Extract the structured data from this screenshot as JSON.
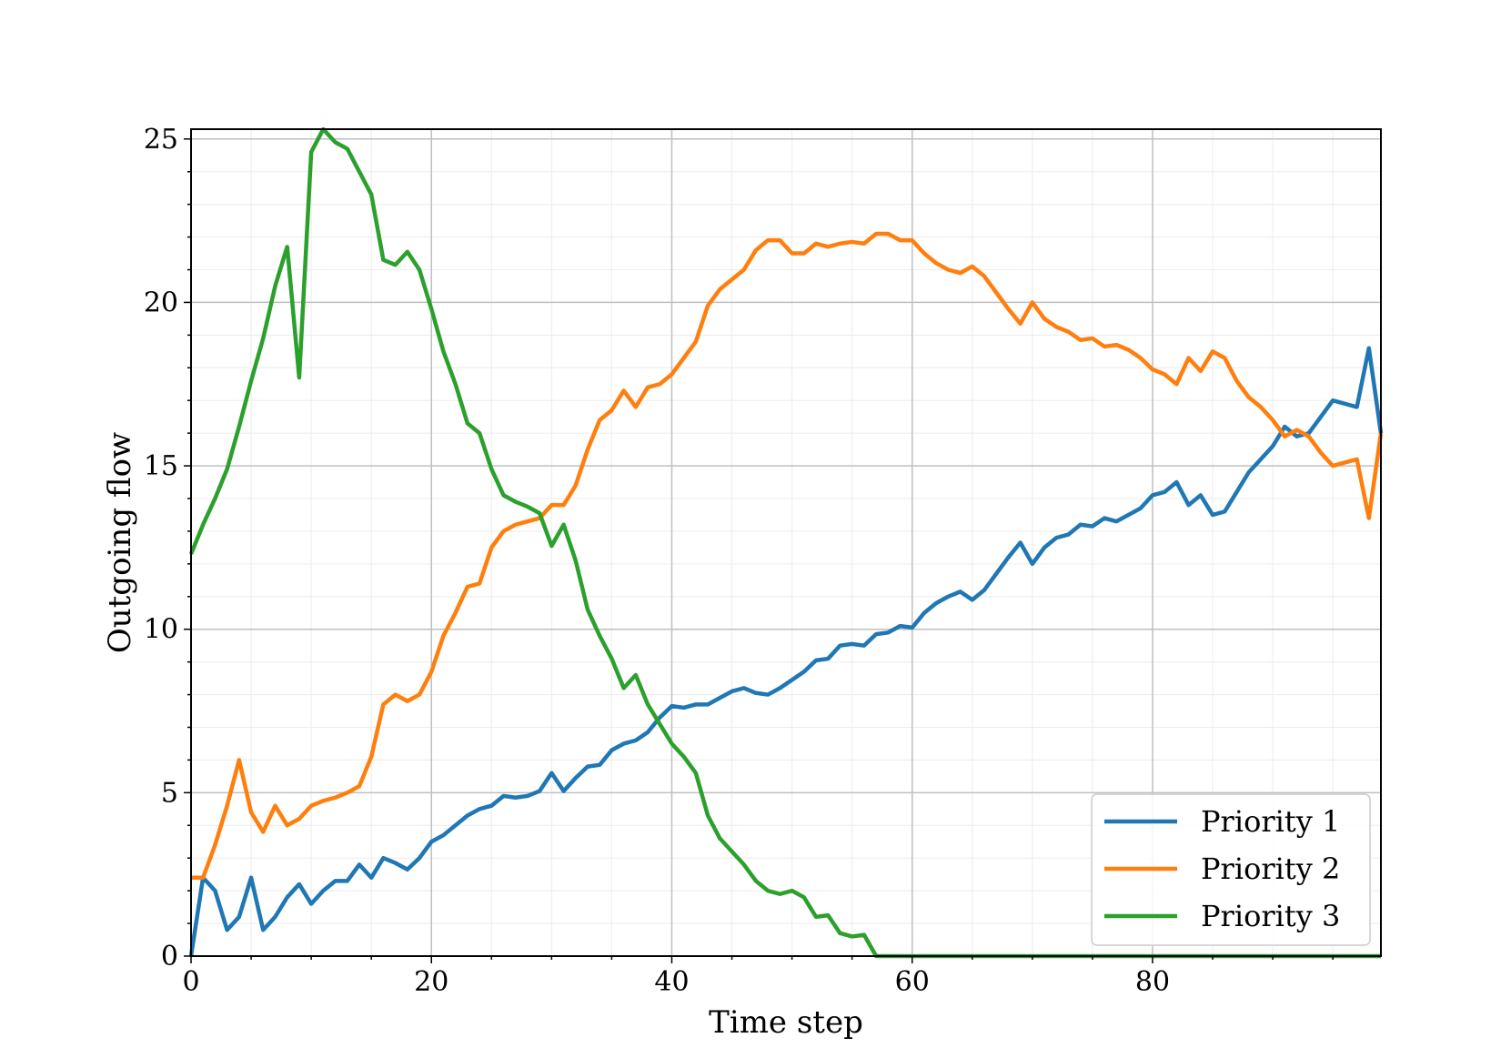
{
  "chart_data": {
    "type": "line",
    "xlabel": "Time step",
    "ylabel": "Outgoing flow",
    "xlim": [
      0,
      99
    ],
    "ylim": [
      0,
      25.3
    ],
    "x_ticks": [
      0,
      20,
      40,
      60,
      80
    ],
    "y_ticks": [
      0,
      5,
      10,
      15,
      20,
      25
    ],
    "x_ticks_labels": [
      "0",
      "20",
      "40",
      "60",
      "80"
    ],
    "y_ticks_labels": [
      "0",
      "5",
      "10",
      "15",
      "20",
      "25"
    ],
    "grid": true,
    "minor_grid": true,
    "legend_position": "bottom-right",
    "series": [
      {
        "name": "Priority 1",
        "color": "#1f77b4",
        "values": [
          0,
          2.4,
          2.0,
          0.8,
          1.2,
          2.4,
          0.8,
          1.2,
          1.8,
          2.2,
          1.6,
          2.0,
          2.3,
          2.3,
          2.8,
          2.4,
          3.0,
          2.85,
          2.65,
          3.0,
          3.5,
          3.7,
          4.0,
          4.3,
          4.5,
          4.6,
          4.9,
          4.85,
          4.9,
          5.05,
          5.6,
          5.05,
          5.45,
          5.8,
          5.85,
          6.3,
          6.5,
          6.6,
          6.85,
          7.3,
          7.65,
          7.6,
          7.7,
          7.7,
          7.9,
          8.1,
          8.2,
          8.05,
          8.0,
          8.2,
          8.45,
          8.7,
          9.05,
          9.1,
          9.5,
          9.55,
          9.5,
          9.85,
          9.9,
          10.1,
          10.05,
          10.5,
          10.8,
          11.0,
          11.15,
          10.9,
          11.2,
          11.7,
          12.2,
          12.65,
          12.0,
          12.5,
          12.8,
          12.9,
          13.2,
          13.15,
          13.4,
          13.3,
          13.5,
          13.7,
          14.1,
          14.2,
          14.5,
          13.8,
          14.1,
          13.5,
          13.6,
          14.2,
          14.8,
          15.2,
          15.6,
          16.2,
          15.9,
          16.0,
          16.5,
          17.0,
          16.9,
          16.8,
          18.6,
          16.0
        ]
      },
      {
        "name": "Priority 2",
        "color": "#ff7f0e",
        "values": [
          2.4,
          2.4,
          3.4,
          4.6,
          6.0,
          4.4,
          3.8,
          4.6,
          4.0,
          4.2,
          4.6,
          4.75,
          4.85,
          5.0,
          5.2,
          6.1,
          7.7,
          8.0,
          7.8,
          8.0,
          8.7,
          9.8,
          10.5,
          11.3,
          11.4,
          12.5,
          13.0,
          13.2,
          13.3,
          13.4,
          13.8,
          13.8,
          14.4,
          15.5,
          16.4,
          16.7,
          17.3,
          16.8,
          17.4,
          17.5,
          17.8,
          18.3,
          18.8,
          19.9,
          20.4,
          20.7,
          21.0,
          21.6,
          21.9,
          21.9,
          21.5,
          21.5,
          21.8,
          21.7,
          21.8,
          21.85,
          21.8,
          22.1,
          22.1,
          21.9,
          21.9,
          21.5,
          21.2,
          21.0,
          20.9,
          21.1,
          20.8,
          20.3,
          19.8,
          19.35,
          20.0,
          19.5,
          19.25,
          19.1,
          18.85,
          18.9,
          18.65,
          18.7,
          18.55,
          18.3,
          17.95,
          17.8,
          17.5,
          18.3,
          17.9,
          18.5,
          18.3,
          17.6,
          17.1,
          16.8,
          16.4,
          15.9,
          16.1,
          15.9,
          15.4,
          15.0,
          15.1,
          15.2,
          13.4,
          16.0
        ]
      },
      {
        "name": "Priority 3",
        "color": "#2ca02c",
        "values": [
          12.3,
          13.2,
          14.0,
          14.9,
          16.2,
          17.6,
          18.9,
          20.5,
          21.7,
          17.7,
          24.6,
          25.3,
          24.9,
          24.7,
          24.0,
          23.3,
          21.3,
          21.15,
          21.55,
          21.0,
          19.8,
          18.5,
          17.5,
          16.3,
          16.0,
          14.9,
          14.1,
          13.9,
          13.75,
          13.55,
          12.55,
          13.2,
          12.1,
          10.6,
          9.8,
          9.1,
          8.2,
          8.6,
          7.7,
          7.1,
          6.5,
          6.1,
          5.6,
          4.3,
          3.6,
          3.2,
          2.8,
          2.3,
          2.0,
          1.9,
          2.0,
          1.8,
          1.2,
          1.25,
          0.7,
          0.6,
          0.65,
          0.0,
          0.0,
          0.0,
          0.0,
          0.0,
          0.0,
          0.0,
          0.0,
          0.0,
          0.0,
          0.0,
          0.0,
          0.0,
          0.0,
          0.0,
          0.0,
          0.0,
          0.0,
          0.0,
          0.0,
          0.0,
          0.0,
          0.0,
          0.0,
          0.0,
          0.0,
          0.0,
          0.0,
          0.0,
          0.0,
          0.0,
          0.0,
          0.0,
          0.0,
          0.0,
          0.0,
          0.0,
          0.0,
          0.0,
          0.0,
          0.0,
          0.0,
          0.0
        ]
      }
    ]
  }
}
